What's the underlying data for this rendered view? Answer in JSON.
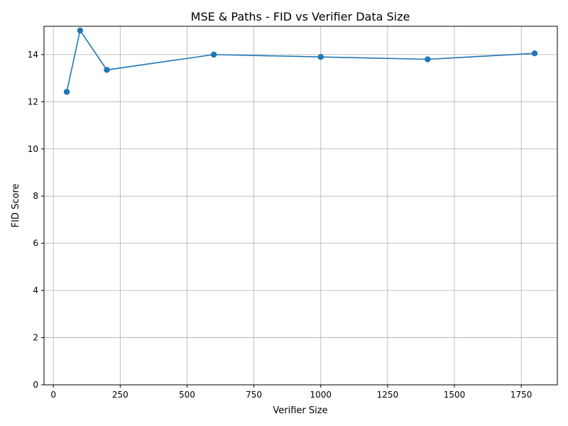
{
  "chart_data": {
    "type": "line",
    "title": "MSE & Paths - FID vs Verifier Data Size",
    "xlabel": "Verifier Size",
    "ylabel": "FID Score",
    "xlim": [
      -35,
      1885
    ],
    "ylim": [
      0,
      15.2
    ],
    "xticks": [
      0,
      250,
      500,
      750,
      1000,
      1250,
      1500,
      1750
    ],
    "yticks": [
      0,
      2,
      4,
      6,
      8,
      10,
      12,
      14
    ],
    "grid": true,
    "series": [
      {
        "name": "",
        "color": "#1f77b4",
        "marker": "circle",
        "x": [
          50,
          100,
          200,
          600,
          1000,
          1400,
          1800
        ],
        "y": [
          12.42,
          15.02,
          13.35,
          14.0,
          13.9,
          13.8,
          14.05
        ]
      }
    ]
  }
}
